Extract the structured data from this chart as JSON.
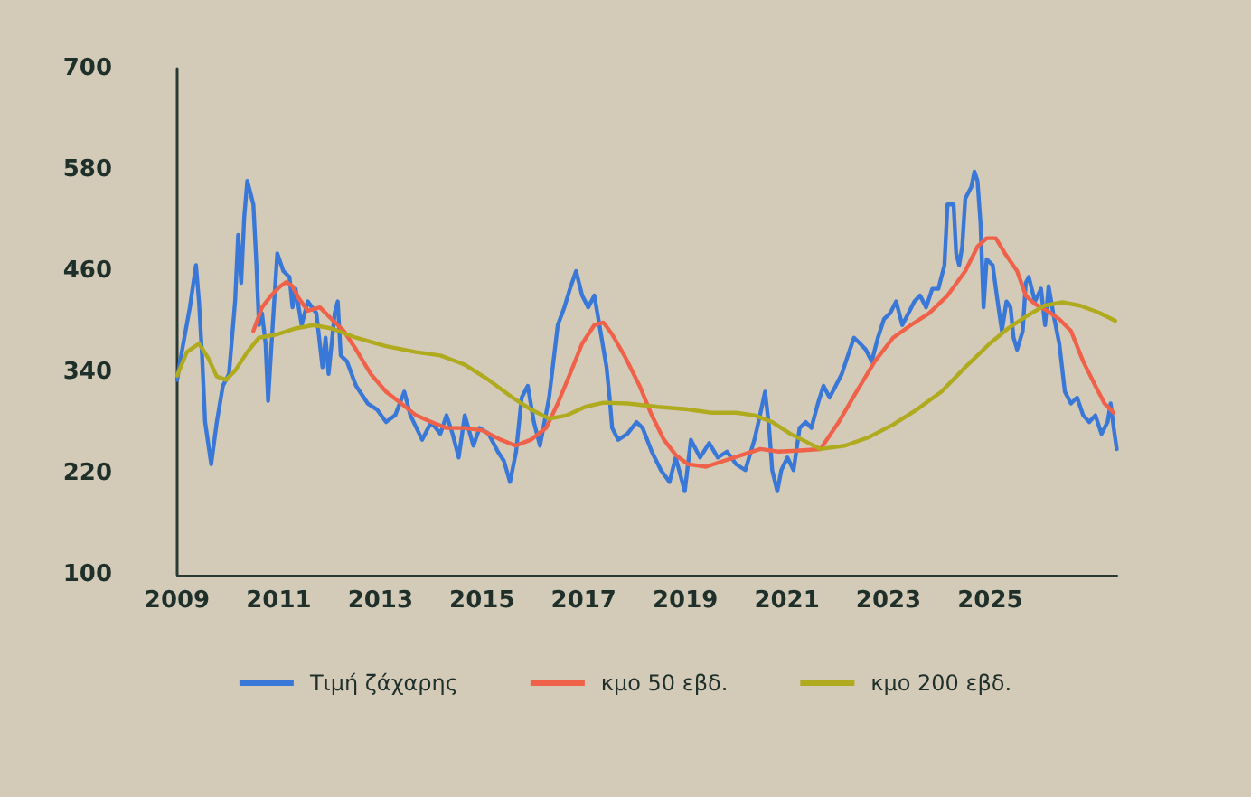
{
  "chart_data": {
    "type": "line",
    "xlim": [
      2009,
      2027.5
    ],
    "xticks": [
      2009,
      2011,
      2013,
      2015,
      2017,
      2019,
      2021,
      2023,
      2025
    ],
    "ylim": [
      100,
      700
    ],
    "yticks": [
      100,
      220,
      340,
      460,
      580,
      700
    ],
    "grid": false,
    "legend": "bottom",
    "marker": "none",
    "line_style": "solid",
    "series": [
      {
        "name": "Τιμή ζάχαρης",
        "color": "#3a78d8",
        "x": [
          2009.0,
          2009.07,
          2009.25,
          2009.37,
          2009.43,
          2009.49,
          2009.55,
          2009.67,
          2009.78,
          2009.9,
          2010.02,
          2010.14,
          2010.2,
          2010.26,
          2010.32,
          2010.38,
          2010.5,
          2010.56,
          2010.61,
          2010.67,
          2010.74,
          2010.79,
          2010.85,
          2010.97,
          2011.09,
          2011.21,
          2011.27,
          2011.33,
          2011.45,
          2011.57,
          2011.74,
          2011.86,
          2011.92,
          2011.98,
          2012.1,
          2012.16,
          2012.22,
          2012.34,
          2012.52,
          2012.75,
          2012.93,
          2013.11,
          2013.29,
          2013.47,
          2013.59,
          2013.82,
          2014.0,
          2014.18,
          2014.3,
          2014.42,
          2014.54,
          2014.66,
          2014.83,
          2014.95,
          2015.13,
          2015.31,
          2015.43,
          2015.55,
          2015.67,
          2015.78,
          2015.9,
          2016.02,
          2016.14,
          2016.32,
          2016.49,
          2016.62,
          2016.73,
          2016.85,
          2016.97,
          2017.09,
          2017.21,
          2017.33,
          2017.45,
          2017.51,
          2017.56,
          2017.68,
          2017.86,
          2018.04,
          2018.16,
          2018.34,
          2018.52,
          2018.69,
          2018.81,
          2018.99,
          2019.11,
          2019.29,
          2019.47,
          2019.64,
          2019.82,
          2020.0,
          2020.18,
          2020.36,
          2020.47,
          2020.57,
          2020.65,
          2020.71,
          2020.81,
          2020.89,
          2021.01,
          2021.13,
          2021.25,
          2021.37,
          2021.48,
          2021.61,
          2021.72,
          2021.84,
          2021.96,
          2022.08,
          2022.2,
          2022.32,
          2022.44,
          2022.55,
          2022.67,
          2022.79,
          2022.91,
          2023.03,
          2023.15,
          2023.27,
          2023.39,
          2023.51,
          2023.62,
          2023.74,
          2023.86,
          2023.98,
          2024.1,
          2024.16,
          2024.28,
          2024.33,
          2024.39,
          2024.45,
          2024.51,
          2024.63,
          2024.69,
          2024.75,
          2024.81,
          2024.87,
          2024.93,
          2025.05,
          2025.13,
          2025.23,
          2025.32,
          2025.4,
          2025.46,
          2025.53,
          2025.64,
          2025.7,
          2025.76,
          2025.88,
          2026.0,
          2026.08,
          2026.15,
          2026.24,
          2026.36,
          2026.47,
          2026.59,
          2026.71,
          2026.83,
          2026.95,
          2027.07,
          2027.19,
          2027.31,
          2027.37,
          2027.43,
          2027.49
        ],
        "values": [
          331,
          357,
          417,
          467,
          424,
          360,
          281,
          231,
          281,
          324,
          338,
          424,
          503,
          446,
          524,
          567,
          539,
          467,
          396,
          410,
          374,
          306,
          367,
          481,
          460,
          453,
          417,
          439,
          396,
          424,
          410,
          346,
          381,
          338,
          410,
          424,
          360,
          353,
          324,
          303,
          296,
          281,
          289,
          317,
          289,
          260,
          281,
          267,
          289,
          267,
          239,
          289,
          253,
          274,
          267,
          246,
          235,
          210,
          246,
          310,
          324,
          281,
          253,
          310,
          396,
          417,
          439,
          460,
          431,
          417,
          431,
          389,
          346,
          310,
          274,
          260,
          267,
          281,
          274,
          246,
          224,
          210,
          239,
          199,
          260,
          239,
          256,
          239,
          246,
          231,
          224,
          260,
          289,
          317,
          274,
          224,
          199,
          224,
          239,
          224,
          274,
          281,
          274,
          303,
          324,
          310,
          324,
          338,
          360,
          381,
          374,
          367,
          353,
          381,
          403,
          410,
          424,
          396,
          410,
          424,
          431,
          417,
          439,
          439,
          467,
          539,
          539,
          481,
          467,
          489,
          546,
          560,
          578,
          567,
          517,
          417,
          474,
          467,
          431,
          389,
          424,
          417,
          381,
          367,
          389,
          446,
          453,
          424,
          439,
          396,
          442,
          410,
          374,
          317,
          303,
          310,
          289,
          281,
          289,
          267,
          281,
          303,
          274,
          249
        ]
      },
      {
        "name": "κμο 50 εβδ.",
        "color": "#f0614a",
        "x": [
          2010.5,
          2010.67,
          2010.85,
          2011.03,
          2011.15,
          2011.27,
          2011.39,
          2011.57,
          2011.81,
          2012.04,
          2012.28,
          2012.52,
          2012.81,
          2013.11,
          2013.41,
          2013.7,
          2014.0,
          2014.3,
          2014.66,
          2015.01,
          2015.37,
          2015.66,
          2015.96,
          2016.26,
          2016.49,
          2016.73,
          2016.97,
          2017.21,
          2017.39,
          2017.56,
          2017.8,
          2018.1,
          2018.34,
          2018.58,
          2018.81,
          2019.05,
          2019.41,
          2019.76,
          2020.12,
          2020.48,
          2020.83,
          2021.19,
          2021.66,
          2022.02,
          2022.37,
          2022.73,
          2023.09,
          2023.44,
          2023.8,
          2024.16,
          2024.51,
          2024.75,
          2024.93,
          2025.11,
          2025.29,
          2025.53,
          2025.7,
          2025.88,
          2026.12,
          2026.36,
          2026.59,
          2026.83,
          2027.07,
          2027.25,
          2027.43
        ],
        "values": [
          389,
          417,
          431,
          442,
          447,
          442,
          428,
          413,
          417,
          403,
          389,
          367,
          338,
          317,
          303,
          289,
          281,
          274,
          274,
          271,
          260,
          253,
          260,
          274,
          303,
          338,
          374,
          396,
          399,
          385,
          360,
          324,
          289,
          260,
          242,
          231,
          228,
          235,
          242,
          249,
          246,
          247,
          249,
          281,
          317,
          353,
          381,
          396,
          410,
          431,
          460,
          489,
          499,
          499,
          481,
          460,
          431,
          421,
          413,
          403,
          389,
          353,
          324,
          303,
          292
        ]
      },
      {
        "name": "κμο 200 εβδ.",
        "color": "#b0aa1e",
        "x": [
          2009.0,
          2009.19,
          2009.43,
          2009.61,
          2009.78,
          2009.96,
          2010.14,
          2010.38,
          2010.61,
          2010.97,
          2011.33,
          2011.68,
          2012.04,
          2012.52,
          2013.11,
          2013.7,
          2014.18,
          2014.66,
          2015.13,
          2015.6,
          2015.96,
          2016.32,
          2016.67,
          2017.03,
          2017.39,
          2017.86,
          2018.46,
          2019.05,
          2019.52,
          2020.0,
          2020.36,
          2020.71,
          2021.07,
          2021.43,
          2021.66,
          2022.14,
          2022.61,
          2023.09,
          2023.56,
          2024.04,
          2024.51,
          2024.99,
          2025.35,
          2025.7,
          2026.06,
          2026.42,
          2026.77,
          2027.13,
          2027.46
        ],
        "values": [
          336,
          364,
          374,
          357,
          335,
          331,
          342,
          364,
          381,
          385,
          392,
          396,
          392,
          381,
          371,
          364,
          360,
          349,
          331,
          310,
          296,
          285,
          289,
          299,
          304,
          303,
          299,
          296,
          292,
          292,
          289,
          281,
          267,
          256,
          249,
          253,
          263,
          278,
          296,
          317,
          346,
          374,
          392,
          406,
          419,
          423,
          419,
          411,
          401
        ]
      }
    ]
  }
}
